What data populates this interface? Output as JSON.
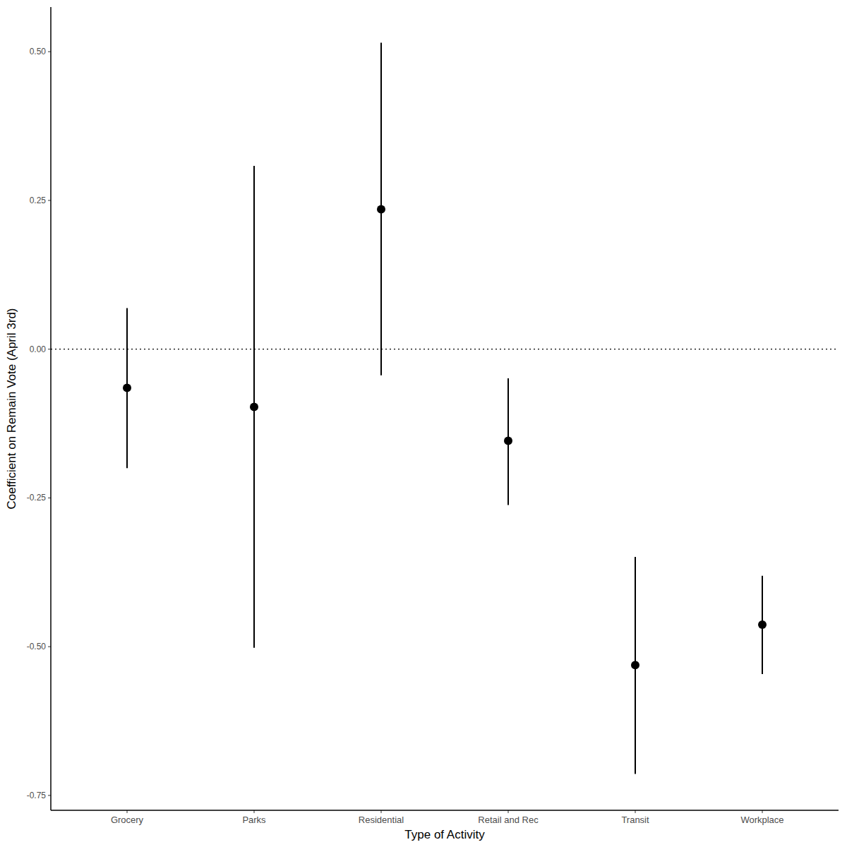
{
  "chart_data": {
    "type": "pointrange",
    "x_label": "Type of Activity",
    "y_label": "Coefficient on Remain Vote (April 3rd)",
    "categories": [
      "Grocery",
      "Parks",
      "Residential",
      "Retail and Rec",
      "Transit",
      "Workplace"
    ],
    "values": [
      -0.065,
      -0.097,
      0.235,
      -0.154,
      -0.531,
      -0.463
    ],
    "lower": [
      -0.2,
      -0.502,
      -0.044,
      -0.262,
      -0.714,
      -0.546
    ],
    "upper": [
      0.069,
      0.308,
      0.515,
      -0.049,
      -0.349,
      -0.381
    ],
    "color": "#000000",
    "reference_line": 0,
    "ylim": [
      -0.775,
      0.575
    ],
    "yticks": [
      {
        "value": -0.75,
        "label": "-0.75"
      },
      {
        "value": -0.5,
        "label": "-0.50"
      },
      -0.25,
      {
        "value": 0,
        "label": "0.00"
      },
      0.25,
      {
        "value": 0.5,
        "label": "0.50"
      }
    ],
    "grid": false
  }
}
